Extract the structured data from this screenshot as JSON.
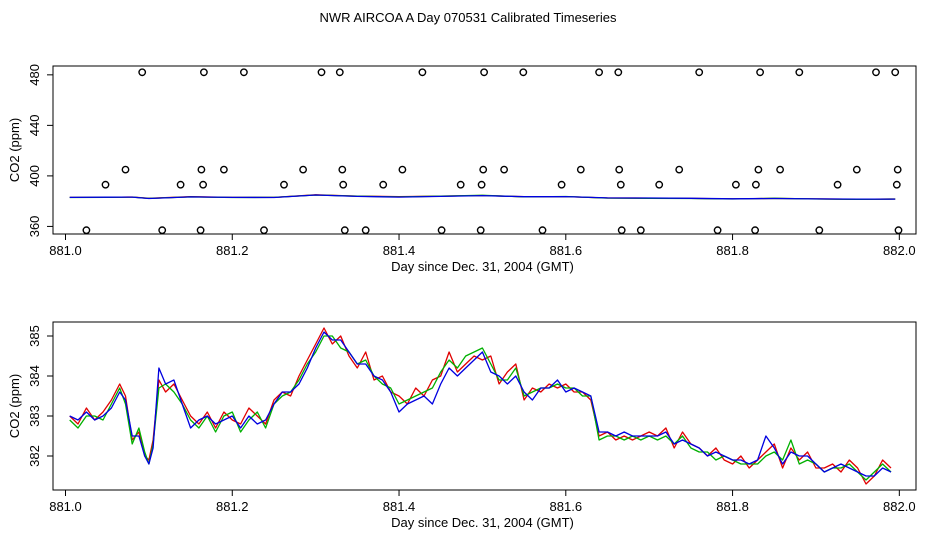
{
  "figure": {
    "title": "NWR AIRCOA A  Day 070531  Calibrated Timeseries"
  },
  "colors": {
    "axis": "#000000",
    "series_red": "#e00000",
    "series_green": "#00b000",
    "series_blue": "#0000e0",
    "points": "#000000"
  },
  "chart_data": [
    {
      "type": "scatter",
      "name": "upper-panel",
      "xlabel": "Day since Dec. 31, 2004 (GMT)",
      "ylabel": "CO2 (ppm)",
      "xlim": [
        880.985,
        882.02
      ],
      "ylim": [
        354,
        487
      ],
      "xticks": [
        881.0,
        881.2,
        881.4,
        881.6,
        881.8,
        882.0
      ],
      "xtick_labels": [
        "881.0",
        "881.2",
        "881.4",
        "881.6",
        "881.8",
        "882.0"
      ],
      "yticks": [
        360,
        400,
        440,
        480
      ],
      "ytick_labels": [
        "360",
        "400",
        "440",
        "480"
      ],
      "points": {
        "x": [
          881.025,
          881.048,
          881.072,
          881.092,
          881.116,
          881.138,
          881.162,
          881.165,
          881.163,
          881.166,
          881.19,
          881.214,
          881.238,
          881.262,
          881.285,
          881.307,
          881.329,
          881.332,
          881.333,
          881.335,
          881.36,
          881.381,
          881.404,
          881.428,
          881.451,
          881.474,
          881.498,
          881.499,
          881.501,
          881.502,
          881.526,
          881.549,
          881.572,
          881.595,
          881.618,
          881.64,
          881.663,
          881.664,
          881.666,
          881.667,
          881.69,
          881.712,
          881.736,
          881.76,
          881.782,
          881.804,
          881.827,
          881.828,
          881.831,
          881.833,
          881.857,
          881.88,
          881.904,
          881.926,
          881.949,
          881.972,
          881.995,
          881.998,
          881.997,
          881.999
        ],
        "y": [
          357,
          393,
          405,
          482,
          357,
          393,
          357,
          393,
          405,
          482,
          405,
          482,
          357,
          393,
          405,
          482,
          482,
          405,
          393,
          357,
          357,
          393,
          405,
          482,
          357,
          393,
          357,
          393,
          405,
          482,
          405,
          482,
          357,
          393,
          405,
          482,
          482,
          405,
          393,
          357,
          357,
          393,
          405,
          482,
          357,
          393,
          357,
          393,
          405,
          482,
          405,
          482,
          357,
          393,
          405,
          482,
          482,
          405,
          393,
          357
        ]
      },
      "series": [
        {
          "name": "red",
          "x": [
            881.005,
            881.05,
            881.08,
            881.1,
            881.15,
            881.2,
            881.25,
            881.3,
            881.35,
            881.4,
            881.45,
            881.5,
            881.55,
            881.6,
            881.65,
            881.7,
            881.75,
            881.8,
            881.85,
            881.9,
            881.95,
            881.995
          ],
          "values": [
            383,
            383,
            383.3,
            382.3,
            383.5,
            383,
            383,
            385,
            384,
            383.5,
            384,
            384.5,
            383.5,
            383.6,
            382.5,
            382.4,
            382.2,
            381.8,
            382.2,
            381.8,
            381.5,
            381.7
          ]
        },
        {
          "name": "green",
          "x": [
            881.005,
            881.05,
            881.08,
            881.1,
            881.15,
            881.2,
            881.25,
            881.3,
            881.35,
            881.4,
            881.45,
            881.5,
            881.55,
            881.6,
            881.65,
            881.7,
            881.75,
            881.8,
            881.85,
            881.9,
            881.95,
            881.995
          ],
          "values": [
            382.9,
            383,
            383.2,
            382.2,
            383.4,
            382.9,
            383,
            384.9,
            383.9,
            383.4,
            383.9,
            384.6,
            383.4,
            383.7,
            382.4,
            382.3,
            382.1,
            381.7,
            382.3,
            381.7,
            381.4,
            381.7
          ]
        },
        {
          "name": "blue",
          "x": [
            881.005,
            881.05,
            881.08,
            881.1,
            881.15,
            881.2,
            881.25,
            881.3,
            881.35,
            881.4,
            881.45,
            881.5,
            881.55,
            881.6,
            881.65,
            881.7,
            881.75,
            881.8,
            881.85,
            881.9,
            881.95,
            881.995
          ],
          "values": [
            383,
            383.1,
            383.2,
            382.1,
            383.4,
            383,
            382.9,
            384.9,
            383.8,
            383.2,
            383.8,
            384.4,
            383.5,
            383.6,
            382.6,
            382.5,
            382.3,
            381.9,
            382.1,
            381.8,
            381.6,
            381.6
          ]
        }
      ]
    },
    {
      "type": "line",
      "name": "lower-panel",
      "xlabel": "Day since Dec. 31, 2004 (GMT)",
      "ylabel": "CO2 (ppm)",
      "xlim": [
        880.985,
        882.02
      ],
      "ylim": [
        381.15,
        385.35
      ],
      "xticks": [
        881.0,
        881.2,
        881.4,
        881.6,
        881.8,
        882.0
      ],
      "xtick_labels": [
        "881.0",
        "881.2",
        "881.4",
        "881.6",
        "881.8",
        "882.0"
      ],
      "yticks": [
        382,
        383,
        384,
        385
      ],
      "ytick_labels": [
        "382",
        "383",
        "384",
        "385"
      ],
      "series": [
        {
          "name": "red",
          "x": [
            881.005,
            881.015,
            881.025,
            881.035,
            881.045,
            881.055,
            881.065,
            881.072,
            881.08,
            881.088,
            881.095,
            881.1,
            881.105,
            881.112,
            881.12,
            881.13,
            881.14,
            881.15,
            881.16,
            881.17,
            881.18,
            881.19,
            881.2,
            881.21,
            881.22,
            881.23,
            881.24,
            881.25,
            881.26,
            881.27,
            881.28,
            881.29,
            881.3,
            881.31,
            881.32,
            881.33,
            881.34,
            881.35,
            881.36,
            881.37,
            881.38,
            881.39,
            881.4,
            881.41,
            881.42,
            881.43,
            881.44,
            881.45,
            881.46,
            881.47,
            881.48,
            881.49,
            881.5,
            881.51,
            881.52,
            881.53,
            881.54,
            881.55,
            881.56,
            881.57,
            881.58,
            881.59,
            881.6,
            881.61,
            881.62,
            881.63,
            881.64,
            881.65,
            881.66,
            881.67,
            881.68,
            881.69,
            881.7,
            881.71,
            881.72,
            881.73,
            881.74,
            881.75,
            881.76,
            881.77,
            881.78,
            881.79,
            881.8,
            881.81,
            881.82,
            881.83,
            881.84,
            881.85,
            881.86,
            881.87,
            881.88,
            881.89,
            881.9,
            881.91,
            881.92,
            881.93,
            881.94,
            881.95,
            881.96,
            881.97,
            881.98,
            881.99
          ],
          "values": [
            383,
            382.8,
            383.2,
            382.9,
            383.1,
            383.4,
            383.8,
            383.5,
            382.4,
            382.6,
            382,
            381.9,
            382.4,
            383.9,
            383.6,
            383.8,
            383.4,
            383,
            382.8,
            383.1,
            382.7,
            383.1,
            382.9,
            382.8,
            383.2,
            383,
            382.8,
            383.4,
            383.6,
            383.5,
            384,
            384.4,
            384.8,
            385.2,
            384.8,
            385,
            384.5,
            384.2,
            384.6,
            383.9,
            384,
            383.6,
            383.5,
            383.3,
            383.7,
            383.5,
            383.9,
            384,
            384.6,
            384.1,
            384.3,
            384.5,
            384.4,
            384.5,
            383.8,
            384.1,
            384.3,
            383.4,
            383.7,
            383.6,
            383.8,
            383.7,
            383.8,
            383.6,
            383.6,
            383.4,
            382.5,
            382.6,
            382.4,
            382.5,
            382.4,
            382.5,
            382.6,
            382.5,
            382.7,
            382.2,
            382.6,
            382.3,
            382.2,
            382,
            382.2,
            381.9,
            381.8,
            382,
            381.7,
            381.9,
            382.1,
            382.3,
            381.7,
            382.2,
            381.9,
            382.1,
            381.7,
            381.7,
            381.8,
            381.6,
            381.9,
            381.7,
            381.3,
            381.5,
            381.9,
            381.7
          ]
        },
        {
          "name": "green",
          "x": [
            881.005,
            881.015,
            881.025,
            881.035,
            881.045,
            881.055,
            881.065,
            881.072,
            881.08,
            881.088,
            881.095,
            881.1,
            881.105,
            881.112,
            881.12,
            881.13,
            881.14,
            881.15,
            881.16,
            881.17,
            881.18,
            881.19,
            881.2,
            881.21,
            881.22,
            881.23,
            881.24,
            881.25,
            881.26,
            881.27,
            881.28,
            881.29,
            881.3,
            881.31,
            881.32,
            881.33,
            881.34,
            881.35,
            881.36,
            881.37,
            881.38,
            881.39,
            881.4,
            881.41,
            881.42,
            881.43,
            881.44,
            881.45,
            881.46,
            881.47,
            881.48,
            881.49,
            881.5,
            881.51,
            881.52,
            881.53,
            881.54,
            881.55,
            881.56,
            881.57,
            881.58,
            881.59,
            881.6,
            881.61,
            881.62,
            881.63,
            881.64,
            881.65,
            881.66,
            881.67,
            881.68,
            881.69,
            881.7,
            881.71,
            881.72,
            881.73,
            881.74,
            881.75,
            881.76,
            881.77,
            881.78,
            881.79,
            881.8,
            881.81,
            881.82,
            881.83,
            881.84,
            881.85,
            881.86,
            881.87,
            881.88,
            881.89,
            881.9,
            881.91,
            881.92,
            881.93,
            881.94,
            881.95,
            881.96,
            881.97,
            881.98,
            881.99
          ],
          "values": [
            382.9,
            382.7,
            383,
            383,
            382.9,
            383.3,
            383.7,
            383.3,
            382.3,
            382.7,
            382.1,
            381.8,
            382.3,
            383.7,
            383.8,
            383.6,
            383.3,
            382.9,
            382.7,
            383,
            382.6,
            383,
            383.1,
            382.6,
            382.9,
            383.1,
            382.7,
            383.3,
            383.5,
            383.6,
            383.9,
            384.3,
            384.6,
            385,
            385,
            384.7,
            384.6,
            384.3,
            384.4,
            384,
            383.8,
            383.7,
            383.3,
            383.4,
            383.5,
            383.6,
            383.7,
            384.1,
            384.4,
            384.2,
            384.5,
            384.6,
            384.7,
            384.3,
            383.9,
            383.9,
            384.2,
            383.5,
            383.6,
            383.7,
            383.7,
            383.8,
            383.7,
            383.7,
            383.5,
            383.5,
            382.4,
            382.5,
            382.5,
            382.4,
            382.5,
            382.4,
            382.5,
            382.4,
            382.5,
            382.3,
            382.5,
            382.2,
            382.1,
            382.1,
            381.9,
            382,
            381.9,
            381.8,
            381.8,
            381.8,
            382,
            382.1,
            381.9,
            382.4,
            381.8,
            381.9,
            381.8,
            381.6,
            381.7,
            381.7,
            381.8,
            381.6,
            381.4,
            381.6,
            381.8,
            381.6
          ]
        },
        {
          "name": "blue",
          "x": [
            881.005,
            881.015,
            881.025,
            881.035,
            881.045,
            881.055,
            881.065,
            881.072,
            881.08,
            881.088,
            881.095,
            881.1,
            881.105,
            881.112,
            881.12,
            881.13,
            881.14,
            881.15,
            881.16,
            881.17,
            881.18,
            881.19,
            881.2,
            881.21,
            881.22,
            881.23,
            881.24,
            881.25,
            881.26,
            881.27,
            881.28,
            881.29,
            881.3,
            881.31,
            881.32,
            881.33,
            881.34,
            881.35,
            881.36,
            881.37,
            881.38,
            881.39,
            881.4,
            881.41,
            881.42,
            881.43,
            881.44,
            881.45,
            881.46,
            881.47,
            881.48,
            881.49,
            881.5,
            881.51,
            881.52,
            881.53,
            881.54,
            881.55,
            881.56,
            881.57,
            881.58,
            881.59,
            881.6,
            881.61,
            881.62,
            881.63,
            881.64,
            881.65,
            881.66,
            881.67,
            881.68,
            881.69,
            881.7,
            881.71,
            881.72,
            881.73,
            881.74,
            881.75,
            881.76,
            881.77,
            881.78,
            881.79,
            881.8,
            881.81,
            881.82,
            881.83,
            881.84,
            881.85,
            881.86,
            881.87,
            881.88,
            881.89,
            881.9,
            881.91,
            881.92,
            881.93,
            881.94,
            881.95,
            881.96,
            881.97,
            881.98,
            881.99
          ],
          "values": [
            383,
            382.9,
            383.1,
            382.9,
            383,
            383.2,
            383.6,
            383.4,
            382.5,
            382.5,
            382,
            381.8,
            382.2,
            384.2,
            383.8,
            383.9,
            383.3,
            382.7,
            382.9,
            383,
            382.8,
            382.9,
            383,
            382.7,
            383,
            382.8,
            382.9,
            383.3,
            383.6,
            383.6,
            383.8,
            384.2,
            384.7,
            385.1,
            384.9,
            384.9,
            384.6,
            384.3,
            384.3,
            384,
            383.9,
            383.6,
            383.1,
            383.3,
            383.4,
            383.5,
            383.3,
            383.8,
            384.2,
            384,
            384.2,
            384.4,
            384.6,
            384.1,
            384,
            383.8,
            384,
            383.6,
            383.4,
            383.7,
            383.7,
            383.9,
            383.6,
            383.7,
            383.6,
            383.5,
            382.6,
            382.6,
            382.5,
            382.6,
            382.5,
            382.5,
            382.5,
            382.5,
            382.6,
            382.3,
            382.4,
            382.3,
            382.2,
            382,
            382.1,
            382,
            381.9,
            381.9,
            381.8,
            381.9,
            382.5,
            382.2,
            381.8,
            382.1,
            382,
            382,
            381.8,
            381.6,
            381.7,
            381.8,
            381.7,
            381.6,
            381.5,
            381.5,
            381.7,
            381.6
          ]
        }
      ]
    }
  ]
}
